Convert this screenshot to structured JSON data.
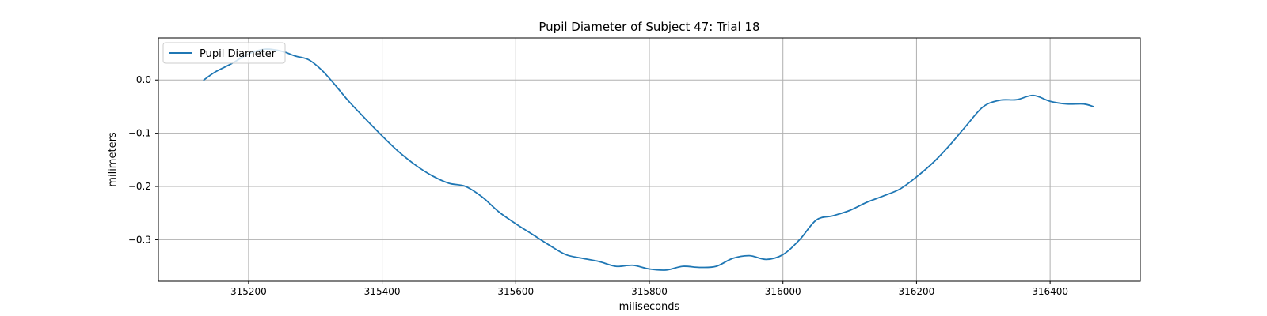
{
  "chart_data": {
    "type": "line",
    "title": "Pupil Diameter of Subject 47: Trial 18",
    "xlabel": "miliseconds",
    "ylabel": "milimeters",
    "xlim": [
      315065,
      316535
    ],
    "ylim": [
      -0.378,
      0.079
    ],
    "xticks": [
      315200,
      315400,
      315600,
      315800,
      316000,
      316200,
      316400
    ],
    "xtick_labels": [
      "315200",
      "315400",
      "315600",
      "315800",
      "316000",
      "316200",
      "316400"
    ],
    "yticks": [
      0.0,
      -0.1,
      -0.2,
      -0.3
    ],
    "ytick_labels": [
      "0.0",
      "−0.1",
      "−0.2",
      "−0.3"
    ],
    "grid": true,
    "legend_position": "upper left",
    "series": [
      {
        "name": "Pupil Diameter",
        "color": "#1f77b4",
        "x": [
          315133,
          315150,
          315175,
          315200,
          315225,
          315250,
          315270,
          315290,
          315310,
          315330,
          315350,
          315375,
          315400,
          315425,
          315450,
          315475,
          315500,
          315525,
          315550,
          315575,
          315600,
          315625,
          315650,
          315675,
          315700,
          315725,
          315750,
          315775,
          315800,
          315825,
          315850,
          315875,
          315900,
          315925,
          315950,
          315975,
          316000,
          316025,
          316050,
          316075,
          316100,
          316125,
          316150,
          316175,
          316200,
          316225,
          316250,
          316275,
          316300,
          316325,
          316350,
          316375,
          316400,
          316425,
          316450,
          316465
        ],
        "y": [
          0.0,
          0.015,
          0.031,
          0.049,
          0.058,
          0.054,
          0.045,
          0.038,
          0.018,
          -0.01,
          -0.04,
          -0.073,
          -0.105,
          -0.135,
          -0.16,
          -0.18,
          -0.194,
          -0.2,
          -0.22,
          -0.248,
          -0.27,
          -0.29,
          -0.31,
          -0.328,
          -0.335,
          -0.341,
          -0.35,
          -0.348,
          -0.355,
          -0.357,
          -0.35,
          -0.352,
          -0.35,
          -0.335,
          -0.33,
          -0.337,
          -0.328,
          -0.3,
          -0.263,
          -0.255,
          -0.245,
          -0.23,
          -0.218,
          -0.205,
          -0.182,
          -0.155,
          -0.122,
          -0.085,
          -0.05,
          -0.038,
          -0.037,
          -0.029,
          -0.04,
          -0.045,
          -0.045,
          -0.05
        ]
      }
    ]
  }
}
